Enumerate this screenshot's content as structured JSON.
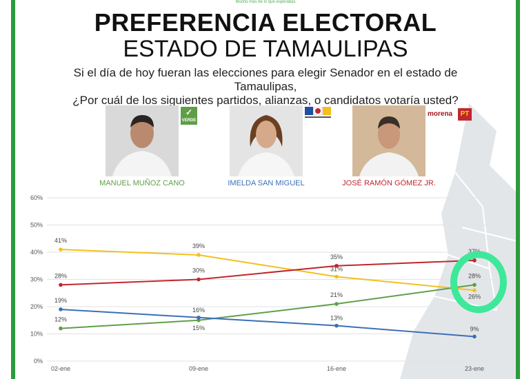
{
  "header": {
    "tagline": "Mucho más de lo que esperabas",
    "title": "PREFERENCIA ELECTORAL",
    "subtitle": "ESTADO DE TAMAULIPAS",
    "question_line1": "Si el día de hoy fueran las elecciones para elegir Senador en el estado de Tamaulipas,",
    "question_line2": "¿Por cuál de los siguientes partidos, alianzas, o candidatos votaría usted?"
  },
  "candidates": [
    {
      "name": "MANUEL MUÑOZ CANO",
      "party": "VERDE",
      "color": "#5f9e48"
    },
    {
      "name": "IMELDA SAN MIGUEL",
      "party": "",
      "color": "#3b6fb6"
    },
    {
      "name": "JOSÉ RAMÓN GÓMEZ JR.",
      "party": "morena PT",
      "color": "#c0272d"
    }
  ],
  "logos": {
    "verde": "VERDE",
    "morena": "morena",
    "pt": "PT"
  },
  "colors": {
    "green": "#5f9e48",
    "blue": "#3b6fb6",
    "red": "#c0272d",
    "yellow": "#f2c01e",
    "highlight": "#3ee89a",
    "frame": "#2e9a3e"
  },
  "chart_data": {
    "type": "line",
    "x": [
      "02-ene",
      "09-ene",
      "16-ene",
      "23-ene"
    ],
    "ylim": [
      0,
      60
    ],
    "yticks": [
      "0%",
      "10%",
      "20%",
      "30%",
      "40%",
      "50%",
      "60%"
    ],
    "grid": true,
    "series": [
      {
        "color": "#f2c01e",
        "values": [
          41,
          39,
          31,
          26
        ],
        "labels": [
          "41%",
          "39%",
          "31%",
          "26%"
        ]
      },
      {
        "color": "#c0272d",
        "values": [
          28,
          30,
          35,
          37
        ],
        "labels": [
          "28%",
          "30%",
          "35%",
          "37%"
        ]
      },
      {
        "color": "#5f9e48",
        "values": [
          12,
          15,
          21,
          28
        ],
        "labels": [
          "12%",
          "15%",
          "21%",
          "28%"
        ]
      },
      {
        "color": "#3b6fb6",
        "values": [
          19,
          16,
          13,
          9
        ],
        "labels": [
          "19%",
          "16%",
          "13%",
          "9%"
        ]
      }
    ]
  }
}
